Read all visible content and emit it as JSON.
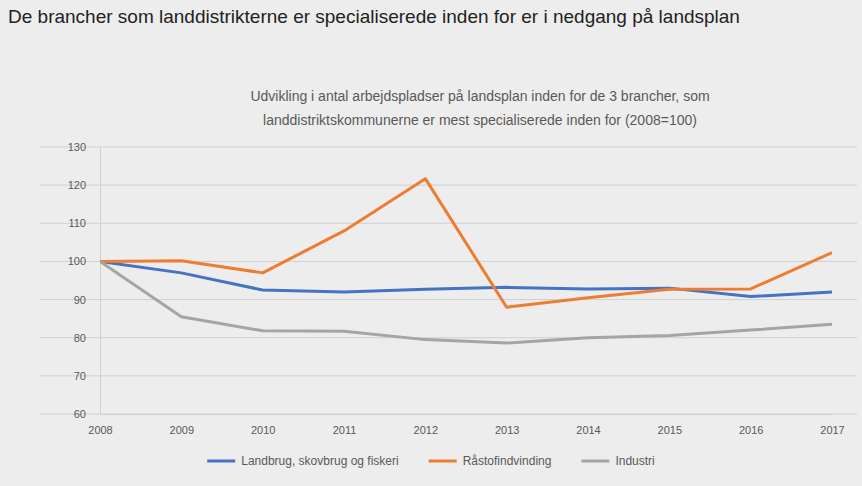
{
  "chart_data": {
    "type": "line",
    "title": "De brancher som landdistrikterne er specialiserede inden for er i nedgang på landsplan",
    "subtitle": [
      "Udvikling i antal arbejdspladser  på landsplan inden for de 3 brancher, som",
      "landdistriktskommunerne  er mest specialiserede  inden for (2008=100)"
    ],
    "x": [
      2008,
      2009,
      2010,
      2011,
      2012,
      2013,
      2014,
      2015,
      2016,
      2017
    ],
    "xlim": [
      2008,
      2017
    ],
    "xticks": [
      2008,
      2009,
      2010,
      2011,
      2012,
      2013,
      2014,
      2015,
      2016,
      2017
    ],
    "ylim": [
      60,
      130
    ],
    "yticks": [
      60,
      70,
      80,
      90,
      100,
      110,
      120,
      130
    ],
    "grid": true,
    "legend": "bottom",
    "series": [
      {
        "name": "Landbrug, skovbrug og fiskeri",
        "color": "#4472c4",
        "values": [
          100,
          97,
          92.5,
          92,
          92.7,
          93.2,
          92.8,
          93,
          90.8,
          92
        ]
      },
      {
        "name": "Råstofindvinding",
        "color": "#ed7d31",
        "values": [
          100,
          100.2,
          97,
          108,
          121.7,
          88,
          90.5,
          92.7,
          92.8,
          102.3
        ]
      },
      {
        "name": "Industri",
        "color": "#a5a5a5",
        "values": [
          100,
          85.5,
          81.8,
          81.7,
          79.5,
          78.6,
          80,
          80.6,
          82,
          83.5
        ]
      }
    ]
  }
}
